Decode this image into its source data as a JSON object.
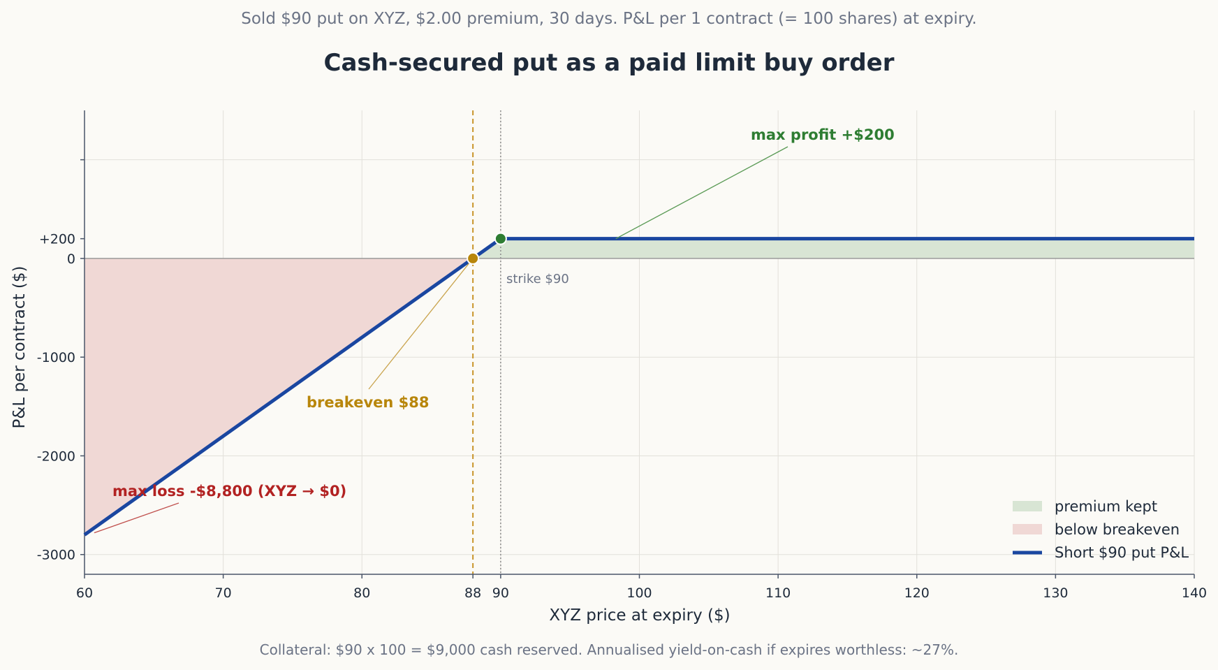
{
  "subtitle": "Sold $90 put on XYZ, $2.00 premium, 30 days. P&L per 1 contract (= 100 shares) at expiry.",
  "title": "Cash-secured put as a paid limit buy order",
  "footnote": "Collateral: $90 x 100 = $9,000 cash reserved. Annualised yield-on-cash if expires worthless: ~27%.",
  "chart_data": {
    "type": "line",
    "xlabel": "XYZ price at expiry ($)",
    "ylabel": "P&L per contract ($)",
    "xlim": [
      60,
      140
    ],
    "ylim": [
      -3200,
      1500
    ],
    "x_ticks": [
      60,
      70,
      80,
      88,
      90,
      100,
      110,
      120,
      130,
      140
    ],
    "x_tick_labels": [
      "60",
      "70",
      "80",
      "88",
      "90",
      "100",
      "110",
      "120",
      "130",
      "140"
    ],
    "y_ticks": [
      -3000,
      -2000,
      -1000,
      0,
      200
    ],
    "y_tick_labels": [
      "-3000",
      "-2000",
      "-1000",
      "0",
      "+200"
    ],
    "grid": true,
    "series": [
      {
        "name": "Short $90 put P&L",
        "x": [
          60,
          88,
          90,
          140
        ],
        "y": [
          -2800,
          0,
          200,
          200
        ],
        "color": "#1a46a0"
      }
    ],
    "fills": [
      {
        "name": "premium kept",
        "x_from": 88,
        "x_to": 140,
        "color": "#d8e5d4"
      },
      {
        "name": "below breakeven",
        "x_from": 60,
        "x_to": 88,
        "color": "#f0d8d5"
      }
    ],
    "markers": [
      {
        "name": "breakeven",
        "x": 88,
        "y": 0,
        "color": "#b8860b"
      },
      {
        "name": "strike",
        "x": 90,
        "y": 200,
        "color": "#2e7d32"
      }
    ],
    "vlines": [
      {
        "x": 88,
        "style": "dashed",
        "color": "#c8952a"
      },
      {
        "x": 90,
        "style": "dotted",
        "color": "#8a8a8a"
      }
    ],
    "annotations": [
      {
        "text": "max profit +$200",
        "color": "#2e7d32"
      },
      {
        "text": "breakeven $88",
        "color": "#b8860b"
      },
      {
        "text": "max loss -$8,800 (XYZ → $0)",
        "color": "#b22222"
      },
      {
        "text": "strike $90",
        "color": "#6b7385"
      }
    ],
    "legend_position": "bottom-right"
  }
}
